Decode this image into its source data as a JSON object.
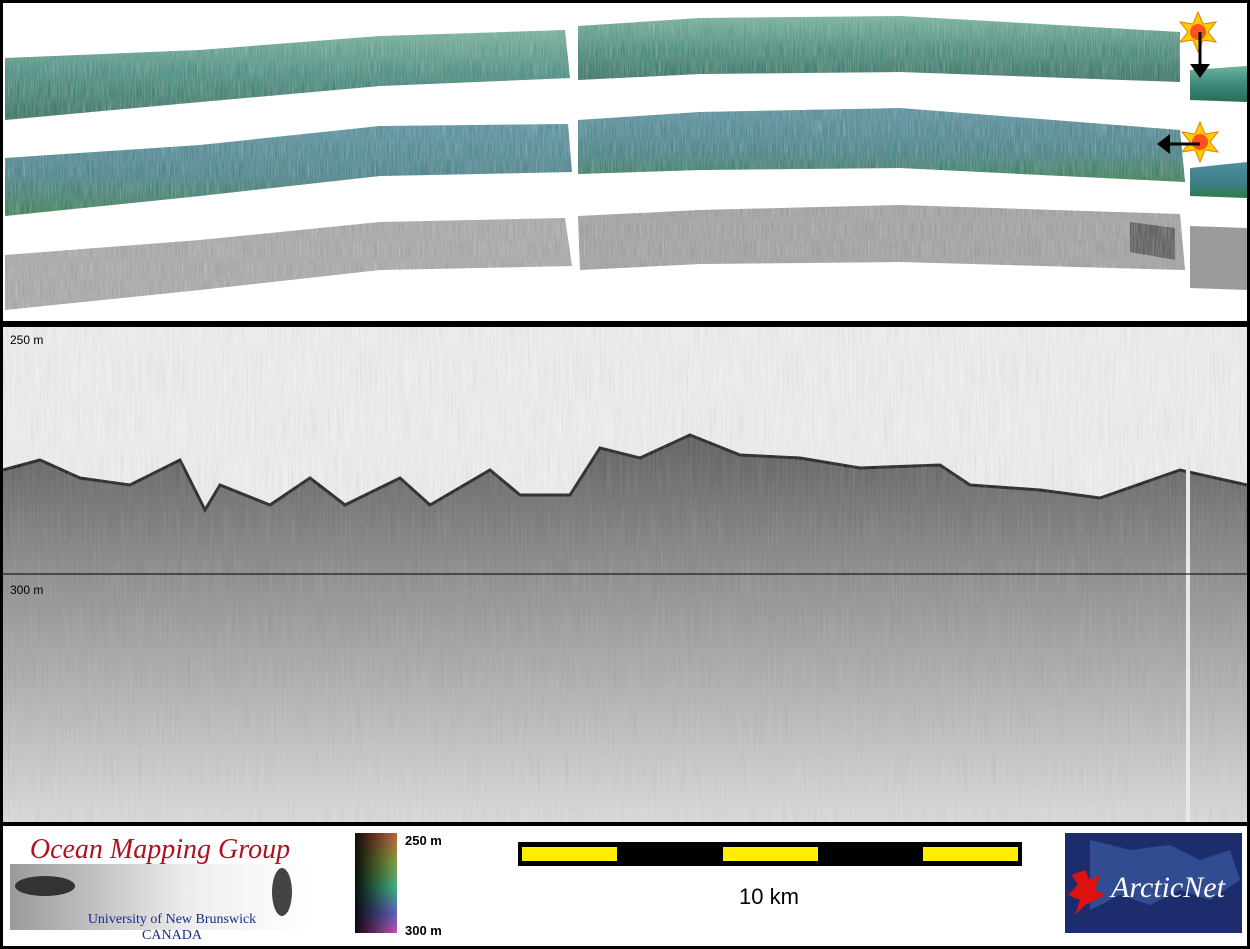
{
  "profile": {
    "top_depth_label": "250 m",
    "bottom_depth_label": "300 m"
  },
  "footer": {
    "logo_left": {
      "title": "Ocean Mapping Group",
      "line1": "University of New Brunswick",
      "line2": "CANADA"
    },
    "colorbar": {
      "top_label": "250 m",
      "bottom_label": "300 m"
    },
    "scale_bar": {
      "label": "10 km"
    },
    "logo_right": {
      "title": "ArcticNet"
    }
  }
}
